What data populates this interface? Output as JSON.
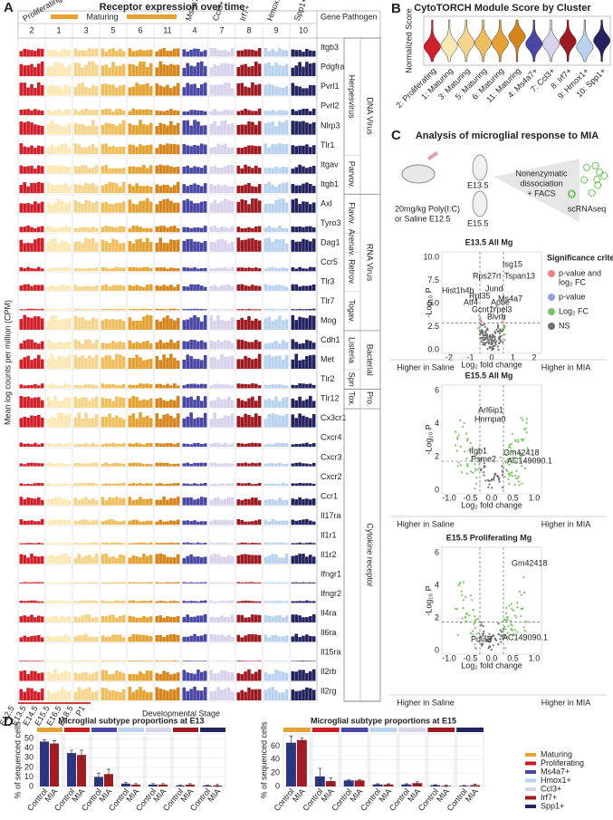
{
  "panel_a": {
    "label": "A",
    "title": "Receptor expression over time",
    "group_labels": [
      "Proliferating",
      "Maturing"
    ],
    "subtypes": [
      "Ms4a7+",
      "Ccl3+",
      "Irf7+",
      "Hmox1+",
      "Spp1+"
    ],
    "clusters": [
      "2",
      "1",
      "3",
      "5",
      "6",
      "11",
      "4",
      "7",
      "8",
      "9",
      "10"
    ],
    "cluster_colors": [
      "#d0202b",
      "#fbe8b4",
      "#f5d48e",
      "#efbf5f",
      "#e3a232",
      "#d4861c",
      "#4a46a4",
      "#d9d2ec",
      "#9e1a22",
      "#b9d3ee",
      "#24235f"
    ],
    "gene_header": "Gene",
    "pathogen_header": "Pathogen",
    "pathogens": [
      {
        "name": "DNA Virus",
        "families": [
          {
            "name": "Herpesvirus",
            "genes": [
              "Itgb3",
              "Pdgfra",
              "Pvrl1",
              "Pvrl2",
              "Nlrp3",
              "Tlr1"
            ]
          },
          {
            "name": "Parvov.",
            "genes": [
              "Itgav",
              "Itgb1"
            ]
          }
        ]
      },
      {
        "name": "RNA Virus",
        "families": [
          {
            "name": "Flaviv.",
            "genes": [
              "Axl",
              "Tyro3"
            ]
          },
          {
            "name": "Arenav.",
            "genes": [
              "Dag1"
            ]
          },
          {
            "name": "Retrov.",
            "genes": [
              "Ccr5",
              "Tlr3"
            ]
          },
          {
            "name": "Togav.",
            "genes": [
              "Tlr7",
              "Mog"
            ]
          }
        ]
      },
      {
        "name": "Bacterial",
        "families": [
          {
            "name": "Listeria",
            "genes": [
              "Cdh1",
              "Met"
            ]
          },
          {
            "name": "Spn",
            "genes": [
              "Tlr2"
            ]
          }
        ]
      },
      {
        "name": "Pro.",
        "families": [
          {
            "name": "Tox.",
            "genes": [
              "Tlr12"
            ]
          }
        ]
      },
      {
        "name": "Cytokine receptor",
        "genes": [
          "Cx3cr1",
          "Cxcr4",
          "Cxcr3",
          "Cxcr2",
          "Ccr1",
          "Il17ra",
          "Il1r1",
          "Il1r2",
          "Ifngr1",
          "Ifngr2",
          "Il4ra",
          "Il6ra",
          "Il15ra",
          "Il2rb",
          "Il2rg"
        ]
      }
    ],
    "y_label": "Mean log counts per million (CPM)",
    "x_label": "Developmental Stage",
    "stages": [
      "E12.5",
      "E13.5",
      "E14.5",
      "E15.5",
      "E16.5",
      "E18.5",
      "P1"
    ]
  },
  "panel_b": {
    "label": "B",
    "title": "CytoTORCH Module Score by Cluster",
    "y_label": "Normalized Score",
    "categories": [
      "2: Proliferating",
      "1: Maturing",
      "3: Maturing",
      "5: Maturing",
      "6: Maturing",
      "11: Maturing",
      "4: Ms4a7+",
      "7: Ccl3+",
      "8: Irf7+",
      "9: Hmox1+",
      "10: Spp1+"
    ]
  },
  "panel_c": {
    "label": "C",
    "title": "Analysis of microglial response to MIA",
    "treatment": [
      "20mg/kg Poly(I:C)",
      "or Saline E12.5"
    ],
    "timepoints": [
      "E13.5",
      "E15.5"
    ],
    "process": [
      "Nonenzymatic",
      "dissociation",
      "+ FACS"
    ],
    "output": "scRNAseq",
    "legend_title": "Significance criteria",
    "legend": [
      {
        "lines": [
          "p-value and",
          "log₂ FC"
        ],
        "color": "#e8857c"
      },
      {
        "lines": [
          "p-value"
        ],
        "color": "#8ea3da"
      },
      {
        "lines": [
          "Log₂ FC"
        ],
        "color": "#78c466"
      },
      {
        "lines": [
          "NS"
        ],
        "color": "#707070"
      }
    ],
    "volcanos": [
      {
        "title": "E13.5 All Mg",
        "genes": [
          "Isg15",
          "Rps27rt",
          "Tspan13",
          "Jund",
          "Hist1h4h",
          "Rpl35",
          "Ms4a7",
          "Atf4",
          "Apoe",
          "Gcnt1",
          "Ypel3",
          "Blvrb"
        ],
        "xticks": [
          "-2",
          "-1",
          "0",
          "1",
          "2"
        ],
        "yticks": [
          "0.0",
          "2.5",
          "5.0",
          "7.5",
          "10.0"
        ]
      },
      {
        "title": "E15.5 All Mg",
        "genes": [
          "Arl6ip1",
          "Hnrnpa0",
          "Gm42418",
          "Itgb1",
          "AC149090.1",
          "Psme2"
        ],
        "xticks": [
          "-1.0",
          "-0.5",
          "0.0",
          "0.5",
          "1.0"
        ],
        "yticks": [
          "0",
          "2",
          "4",
          "6"
        ]
      },
      {
        "title": "E15.5 Proliferating Mg",
        "genes": [
          "Gm42418",
          "Pdia3",
          "AC149090.1"
        ],
        "xticks": [
          "-1.0",
          "-0.5",
          "0.0",
          "0.5",
          "1.0"
        ],
        "yticks": [
          "0",
          "2",
          "4",
          "6"
        ]
      }
    ],
    "x_label": "Log₂ fold change",
    "y_label": "-Log₁₀ P",
    "left": "Higher in Saline",
    "right": "Higher in MIA"
  },
  "panel_d": {
    "label": "D",
    "legend": {
      "labels": [
        "Maturing",
        "Proliferating",
        "Ms4a7+",
        "Hmox1+",
        "Ccl3+",
        "Irf7+",
        "Spp1+"
      ],
      "colors": [
        "#e3a232",
        "#c81d25",
        "#4a46a4",
        "#b9d3ee",
        "#d9d2ec",
        "#9e1a22",
        "#24235f"
      ]
    }
  },
  "chart_data": [
    {
      "type": "bar",
      "title": "Microglial subtype proportions at E13",
      "y_label": "% of sequenced cells",
      "series": [
        {
          "name": "Control",
          "color": "#2b3582",
          "values": [
            47,
            35,
            10,
            3,
            2,
            1,
            1
          ],
          "errors": [
            2,
            3,
            4,
            1,
            1,
            0.5,
            0.5
          ]
        },
        {
          "name": "MIA",
          "color": "#a31c24",
          "values": [
            45,
            33,
            13,
            2,
            2,
            2,
            1
          ],
          "errors": [
            3,
            5,
            5,
            1,
            1,
            1,
            1
          ]
        }
      ],
      "ylim": [
        0,
        55
      ],
      "yticks": [
        0,
        10,
        20,
        30,
        40,
        50
      ],
      "grid": true
    },
    {
      "type": "bar",
      "title": "Microglial subtype proportions at E15",
      "y_label": "% of sequenced cells",
      "series": [
        {
          "name": "Control",
          "color": "#2b3582",
          "values": [
            65,
            15,
            9,
            3,
            3,
            2,
            1
          ],
          "errors": [
            10,
            12,
            1,
            1,
            1,
            0.5,
            0.5
          ]
        },
        {
          "name": "MIA",
          "color": "#a31c24",
          "values": [
            69,
            8,
            9,
            3,
            5,
            1,
            2
          ],
          "errors": [
            3,
            5,
            1,
            1,
            2,
            1,
            1.5
          ]
        }
      ],
      "ylim": [
        0,
        78
      ],
      "yticks": [
        0,
        20,
        40,
        60
      ],
      "grid": true
    }
  ]
}
